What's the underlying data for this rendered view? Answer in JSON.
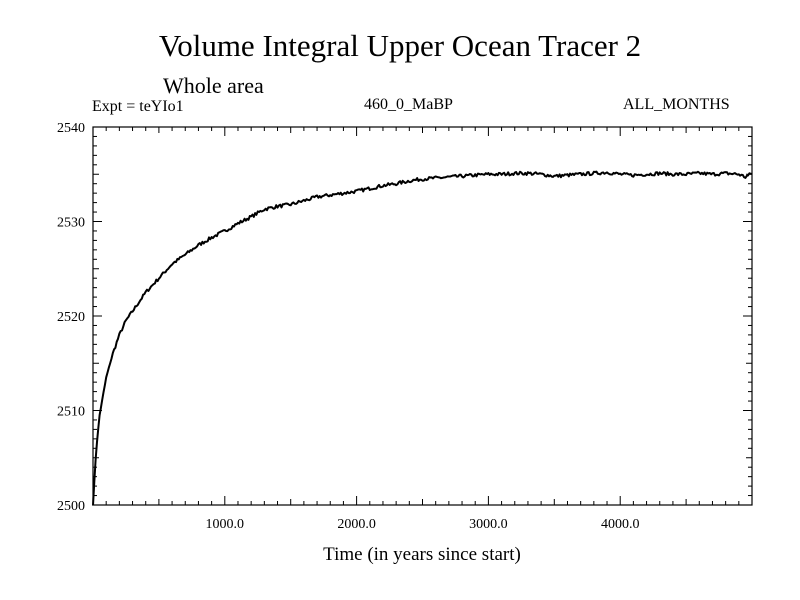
{
  "chart_data": {
    "type": "line",
    "title": "Volume Integral Upper Ocean Tracer 2",
    "subtitle": "Whole area",
    "expt_label": "Expt = teYIo1",
    "center_label": "460_0_MaBP",
    "right_label": "ALL_MONTHS",
    "xlabel": "Time (in years since start)",
    "ylabel": "",
    "xlim": [
      0,
      5000
    ],
    "ylim": [
      2500,
      2540
    ],
    "x_ticks": [
      1000,
      2000,
      3000,
      4000
    ],
    "x_tick_labels": [
      "1000.0",
      "2000.0",
      "3000.0",
      "4000.0"
    ],
    "y_ticks": [
      2500,
      2510,
      2520,
      2530,
      2540
    ],
    "y_tick_labels": [
      "2500",
      "2510",
      "2520",
      "2530",
      "2540"
    ],
    "grid": false,
    "series": [
      {
        "name": "Volume Integral Upper Ocean Tracer 2",
        "color": "#000000",
        "x": [
          0,
          25,
          50,
          100,
          150,
          200,
          250,
          300,
          400,
          500,
          600,
          700,
          800,
          900,
          1000,
          1100,
          1200,
          1300,
          1400,
          1500,
          1600,
          1700,
          1800,
          1900,
          2000,
          2100,
          2200,
          2300,
          2400,
          2500,
          2600,
          2700,
          2800,
          2900,
          3000,
          3100,
          3200,
          3300,
          3400,
          3500,
          3600,
          3700,
          3800,
          3900,
          4000,
          4100,
          4200,
          4300,
          4400,
          4500,
          4600,
          4700,
          4800,
          4900,
          4950,
          5000
        ],
        "values": [
          2500.0,
          2506.0,
          2509.5,
          2513.5,
          2516.0,
          2518.0,
          2519.5,
          2520.5,
          2522.5,
          2524.0,
          2525.5,
          2526.5,
          2527.5,
          2528.3,
          2529.0,
          2529.8,
          2530.5,
          2531.3,
          2531.6,
          2531.8,
          2532.2,
          2532.6,
          2532.8,
          2533.0,
          2533.2,
          2533.5,
          2533.8,
          2534.0,
          2534.3,
          2534.5,
          2534.6,
          2534.7,
          2534.8,
          2534.9,
          2535.0,
          2535.0,
          2535.1,
          2535.1,
          2535.0,
          2534.8,
          2534.9,
          2535.0,
          2535.1,
          2535.2,
          2535.0,
          2534.9,
          2535.0,
          2535.1,
          2535.0,
          2535.0,
          2535.1,
          2535.0,
          2535.1,
          2535.0,
          2534.7,
          2535.1
        ]
      }
    ]
  }
}
